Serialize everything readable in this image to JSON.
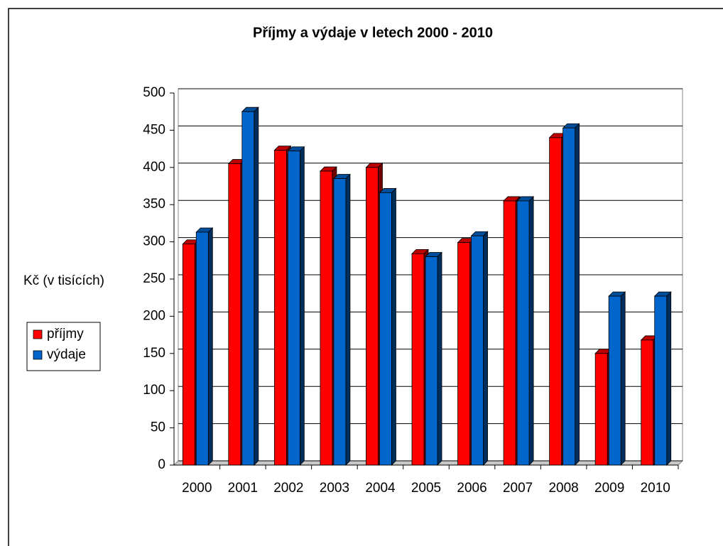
{
  "chart_data": {
    "type": "bar3d",
    "title": "Příjmy a výdaje v letech 2000 - 2010",
    "y_label": "Kč (v tisících)",
    "categories": [
      "2000",
      "2001",
      "2002",
      "2003",
      "2004",
      "2005",
      "2006",
      "2007",
      "2008",
      "2009",
      "2010"
    ],
    "series": [
      {
        "name": "příjmy",
        "color": "#ff0000",
        "values": [
          297,
          405,
          423,
          395,
          400,
          284,
          299,
          355,
          440,
          150,
          168
        ]
      },
      {
        "name": "výdaje",
        "color": "#0066cc",
        "values": [
          313,
          475,
          422,
          385,
          366,
          280,
          308,
          355,
          453,
          227,
          227
        ]
      }
    ],
    "ylim": [
      0,
      500
    ],
    "yticks": [
      0,
      50,
      100,
      150,
      200,
      250,
      300,
      350,
      400,
      450,
      500
    ],
    "grid": true,
    "legend": "left"
  }
}
